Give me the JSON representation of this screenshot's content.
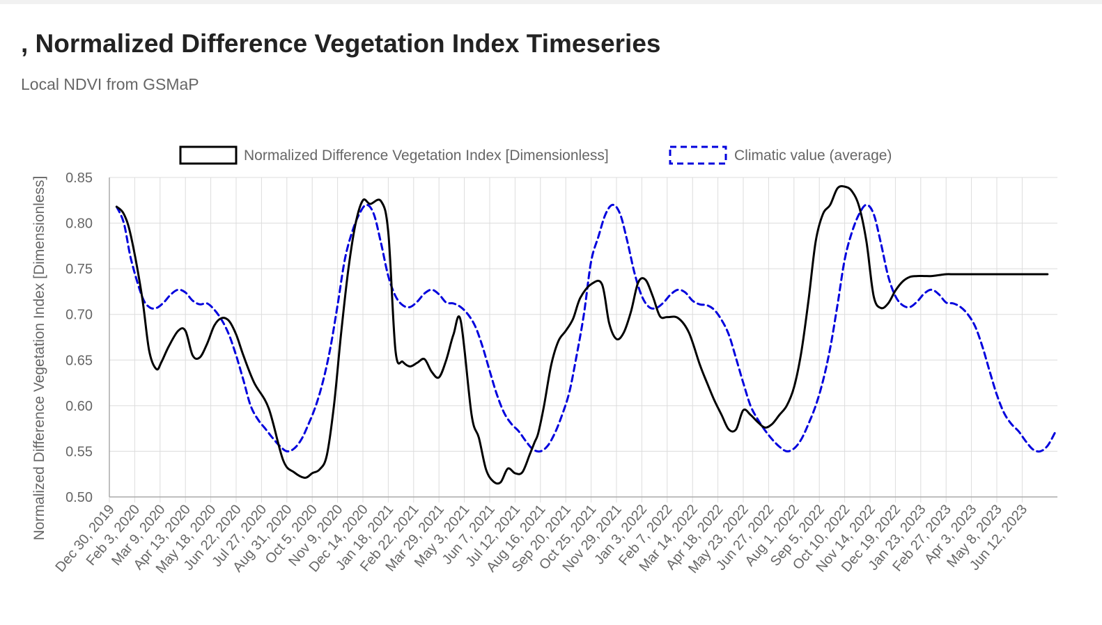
{
  "page": {
    "title": ", Normalized Difference Vegetation Index Timeseries",
    "subtitle": "Local NDVI from GSMaP"
  },
  "colors": {
    "ndvi": "#000000",
    "climatic": "#0000dd",
    "grid": "#dcdcdc",
    "axis_text": "#666666"
  },
  "chart_data": {
    "type": "line",
    "title": ", Normalized Difference Vegetation Index Timeseries",
    "subtitle": "Local NDVI from GSMaP",
    "ylabel": "Normalized Difference Vegetation Index [Dimensionless]",
    "xlabel": "",
    "ylim": [
      0.5,
      0.85
    ],
    "yticks": [
      0.5,
      0.55,
      0.6,
      0.65,
      0.7,
      0.75,
      0.8,
      0.85
    ],
    "ytick_labels": [
      "0.50",
      "0.55",
      "0.60",
      "0.65",
      "0.70",
      "0.75",
      "0.80",
      "0.85"
    ],
    "x_range": [
      0,
      1300
    ],
    "x_tick_labels": [
      "Dec 30, 2019",
      "Feb 3, 2020",
      "Mar 9, 2020",
      "Apr 13, 2020",
      "May 18, 2020",
      "Jun 22, 2020",
      "Jul 27, 2020",
      "Aug 31, 2020",
      "Oct 5, 2020",
      "Nov 9, 2020",
      "Dec 14, 2020",
      "Jan 18, 2021",
      "Feb 22, 2021",
      "Mar 29, 2021",
      "May 3, 2021",
      "Jun 7, 2021",
      "Jul 12, 2021",
      "Aug 16, 2021",
      "Sep 20, 2021",
      "Oct 25, 2021",
      "Nov 29, 2021",
      "Jan 3, 2022",
      "Feb 7, 2022",
      "Mar 14, 2022",
      "Apr 18, 2022",
      "May 23, 2022",
      "Jun 27, 2022",
      "Aug 1, 2022",
      "Sep 5, 2022",
      "Oct 10, 2022",
      "Nov 14, 2022",
      "Dec 19, 2022",
      "Jan 23, 2023",
      "Feb 27, 2023",
      "Apr 3, 2023",
      "May 8, 2023",
      "Jun 12, 2023"
    ],
    "x_tick_interval_days": 35,
    "legend_position": "top-center",
    "grid": true,
    "series": [
      {
        "name": "Normalized Difference Vegetation Index [Dimensionless]",
        "style": "solid",
        "days": [
          10,
          20,
          30,
          45,
          55,
          65,
          72,
          82,
          95,
          105,
          115,
          125,
          135,
          145,
          155,
          165,
          175,
          185,
          200,
          220,
          240,
          255,
          270,
          280,
          290,
          300,
          310,
          320,
          330,
          340,
          350,
          360,
          375,
          385,
          395,
          405,
          415,
          425,
          435,
          445,
          455,
          465,
          475,
          485,
          500,
          510,
          520,
          530,
          540,
          550,
          560,
          570,
          580,
          587,
          592,
          600,
          610,
          620,
          630,
          640,
          650,
          665,
          680,
          690,
          700,
          710,
          720,
          730,
          740,
          750,
          760,
          770,
          785,
          800,
          815,
          825,
          835,
          845,
          855,
          865,
          875,
          885,
          895,
          905,
          915,
          925,
          935,
          945,
          955,
          965,
          975,
          985,
          995,
          1005,
          1015,
          1025,
          1035,
          1045,
          1055,
          1065,
          1075,
          1085,
          1095,
          1105,
          1115,
          1125,
          1135,
          1145,
          1155,
          1165,
          1175,
          1185,
          1195,
          1205,
          1215,
          1225,
          1235,
          1245,
          1255,
          1265,
          1275,
          1285,
          1295
        ],
        "values": [
          0.818,
          0.81,
          0.785,
          0.72,
          0.66,
          0.64,
          0.648,
          0.665,
          0.682,
          0.682,
          0.655,
          0.653,
          0.668,
          0.688,
          0.696,
          0.693,
          0.678,
          0.655,
          0.625,
          0.597,
          0.54,
          0.527,
          0.521,
          0.526,
          0.53,
          0.545,
          0.6,
          0.68,
          0.75,
          0.8,
          0.825,
          0.821,
          0.824,
          0.79,
          0.66,
          0.648,
          0.643,
          0.647,
          0.651,
          0.637,
          0.631,
          0.65,
          0.678,
          0.693,
          0.59,
          0.565,
          0.53,
          0.517,
          0.516,
          0.531,
          0.526,
          0.527,
          0.546,
          0.56,
          0.57,
          0.6,
          0.645,
          0.671,
          0.682,
          0.695,
          0.718,
          0.733,
          0.733,
          0.69,
          0.673,
          0.68,
          0.703,
          0.735,
          0.738,
          0.72,
          0.698,
          0.697,
          0.696,
          0.68,
          0.645,
          0.625,
          0.606,
          0.59,
          0.574,
          0.574,
          0.595,
          0.59,
          0.582,
          0.576,
          0.58,
          0.59,
          0.6,
          0.62,
          0.658,
          0.715,
          0.78,
          0.81,
          0.82,
          0.838,
          0.84,
          0.835,
          0.818,
          0.78,
          0.72,
          0.707,
          0.712,
          0.726,
          0.736,
          0.741,
          0.742,
          0.742,
          0.742,
          0.743,
          0.744,
          0.744,
          0.744,
          0.744,
          0.744,
          0.744,
          0.744,
          0.744,
          0.744,
          0.744,
          0.744,
          0.744,
          0.744,
          0.744,
          0.744
        ],
        "visible_until_day": 1305
      },
      {
        "name": "Climatic value (average)",
        "style": "dashed",
        "days": [
          10,
          20,
          30,
          45,
          55,
          65,
          75,
          85,
          95,
          105,
          115,
          125,
          135,
          145,
          155,
          165,
          175,
          185,
          195,
          205,
          215,
          225,
          235,
          245,
          255,
          265,
          275,
          285,
          295,
          305,
          315,
          325,
          335,
          345,
          355,
          365,
          375,
          385,
          395,
          405,
          415,
          425,
          435,
          445,
          455,
          465,
          475,
          485,
          495,
          505,
          515,
          525,
          535,
          545,
          555,
          565,
          575,
          585,
          595,
          605,
          615,
          625,
          635,
          645,
          655,
          665,
          675,
          685,
          695,
          705,
          715,
          725,
          735,
          745,
          755,
          765,
          775,
          785,
          795,
          805,
          815,
          825,
          835,
          845,
          855,
          865,
          875,
          885,
          895,
          905,
          915,
          925,
          935,
          945,
          955,
          965,
          975,
          985,
          995,
          1005,
          1015,
          1025,
          1035,
          1045,
          1055,
          1065,
          1075,
          1085,
          1095,
          1105,
          1115,
          1125,
          1135,
          1145,
          1155,
          1165,
          1175,
          1185,
          1195,
          1205,
          1215,
          1225,
          1235,
          1245,
          1255,
          1265,
          1275,
          1285,
          1295,
          1305
        ],
        "values": [
          0.818,
          0.8,
          0.76,
          0.72,
          0.708,
          0.707,
          0.713,
          0.722,
          0.727,
          0.724,
          0.715,
          0.711,
          0.712,
          0.705,
          0.694,
          0.678,
          0.655,
          0.628,
          0.6,
          0.585,
          0.575,
          0.565,
          0.556,
          0.55,
          0.553,
          0.563,
          0.58,
          0.6,
          0.627,
          0.663,
          0.71,
          0.76,
          0.79,
          0.81,
          0.82,
          0.81,
          0.778,
          0.742,
          0.72,
          0.71,
          0.708,
          0.714,
          0.723,
          0.727,
          0.722,
          0.713,
          0.712,
          0.708,
          0.7,
          0.687,
          0.665,
          0.638,
          0.612,
          0.592,
          0.58,
          0.572,
          0.561,
          0.552,
          0.55,
          0.556,
          0.57,
          0.59,
          0.615,
          0.655,
          0.7,
          0.758,
          0.785,
          0.81,
          0.82,
          0.81,
          0.78,
          0.745,
          0.72,
          0.708,
          0.707,
          0.713,
          0.722,
          0.727,
          0.724,
          0.715,
          0.711,
          0.71,
          0.705,
          0.694,
          0.678,
          0.652,
          0.625,
          0.6,
          0.585,
          0.573,
          0.563,
          0.555,
          0.55,
          0.553,
          0.563,
          0.58,
          0.6,
          0.627,
          0.663,
          0.71,
          0.76,
          0.79,
          0.81,
          0.82,
          0.81,
          0.778,
          0.742,
          0.72,
          0.71,
          0.708,
          0.714,
          0.723,
          0.727,
          0.722,
          0.713,
          0.712,
          0.708,
          0.7,
          0.687,
          0.665,
          0.638,
          0.612,
          0.592,
          0.58,
          0.572,
          0.561,
          0.552,
          0.55,
          0.556,
          0.57
        ],
        "visible_until_day": 1305
      }
    ]
  }
}
